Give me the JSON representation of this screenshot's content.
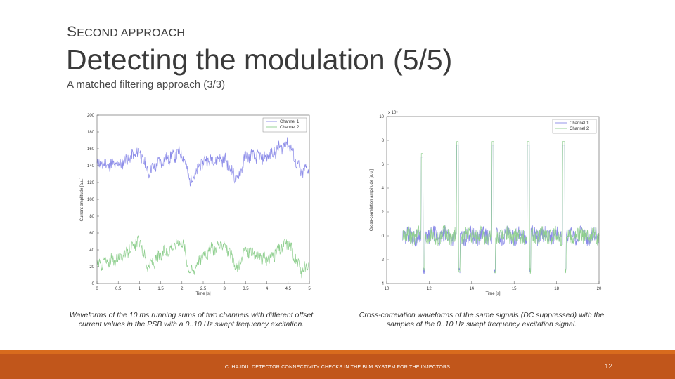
{
  "header": {
    "kicker_first": "S",
    "kicker_rest": "ECOND APPROACH",
    "title": "Detecting the modulation (5/5)",
    "subtitle": "A matched filtering approach (3/3)"
  },
  "captions": {
    "left": "Waveforms of the 10 ms running sums of two channels with different offset current values in the PSB with a 0..10 Hz swept frequency excitation.",
    "right": "Cross-correlation waveforms of the same signals (DC suppressed) with the samples of the 0..10 Hz swept frequency excitation signal."
  },
  "footer": {
    "text": "C. HAJDU: DETECTOR CONNECTIVITY CHECKS IN THE BLM SYSTEM FOR THE INJECTORS",
    "page_number": "12"
  },
  "colors": {
    "channel1": "#8a8ae8",
    "channel2": "#8fcf8f",
    "footer": "#c1561b",
    "footer_accent": "#d86b1d"
  },
  "chart_data": [
    {
      "type": "line",
      "xlabel": "Time [s]",
      "ylabel": "Current amplitude [a.u.]",
      "xlim": [
        0,
        5
      ],
      "ylim": [
        0,
        200
      ],
      "xticks": [
        "0",
        "0.5",
        "1",
        "1.5",
        "2",
        "2.5",
        "3",
        "3.5",
        "4",
        "4.5",
        "5"
      ],
      "yticks": [
        "0",
        "20",
        "40",
        "60",
        "80",
        "100",
        "120",
        "140",
        "160",
        "180",
        "200"
      ],
      "legend": [
        "Channel 1",
        "Channel 2"
      ],
      "legend_position": "top-right",
      "grid": false,
      "series": [
        {
          "name": "Channel 1",
          "x": [
            0,
            0.5,
            1,
            1.2,
            1.5,
            2,
            2.2,
            2.5,
            3,
            3.3,
            3.5,
            4,
            4.5,
            4.8,
            5
          ],
          "values": [
            141,
            141,
            157,
            132,
            145,
            156,
            121,
            146,
            148,
            122,
            152,
            150,
            168,
            131,
            138
          ]
        },
        {
          "name": "Channel 2",
          "x": [
            0,
            0.5,
            1,
            1.2,
            1.5,
            2,
            2.2,
            2.5,
            3,
            3.3,
            3.5,
            4,
            4.5,
            4.8,
            5
          ],
          "values": [
            23,
            29,
            50,
            20,
            33,
            52,
            12,
            35,
            48,
            16,
            40,
            27,
            50,
            15,
            20
          ]
        }
      ]
    },
    {
      "type": "line",
      "xlabel": "Time [s]",
      "ylabel": "Cross-correlation amplitude [a.u.]",
      "y_multiplier": "x 10⁵",
      "xlim": [
        8,
        20
      ],
      "ylim": [
        -4,
        10
      ],
      "xticks": [
        "10",
        "12",
        "14",
        "15",
        "18",
        "20"
      ],
      "yticks": [
        "-4",
        "-2",
        "0",
        "2",
        "4",
        "6",
        "8",
        "10"
      ],
      "legend": [
        "Channel 1",
        "Channel 2"
      ],
      "legend_position": "top-right",
      "grid": false,
      "series": [
        {
          "name": "Channel 1",
          "x": [
            8.9,
            9.5,
            10,
            11,
            12,
            13,
            14,
            15,
            16,
            17,
            18,
            19,
            20
          ],
          "values": [
            0.3,
            0.5,
            6.0,
            1.2,
            7.0,
            1.0,
            7.0,
            1.0,
            7.0,
            1.0,
            7.0,
            1.0,
            0.0
          ]
        },
        {
          "name": "Channel 2",
          "x": [
            8.9,
            9.5,
            10,
            11,
            12,
            13,
            14,
            15,
            16,
            17,
            18,
            19,
            20
          ],
          "values": [
            0.5,
            0.7,
            6.0,
            1.2,
            7.0,
            1.0,
            7.0,
            1.0,
            7.0,
            1.0,
            7.0,
            1.0,
            0.0
          ]
        }
      ]
    }
  ]
}
